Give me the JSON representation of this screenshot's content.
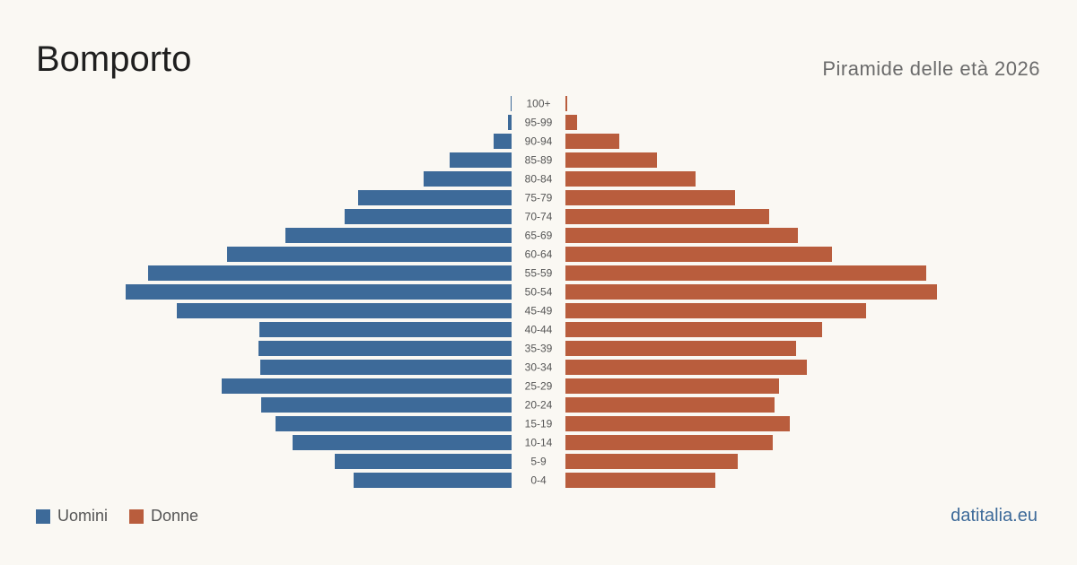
{
  "header": {
    "title": "Bomporto",
    "subtitle": "Piramide delle età 2026"
  },
  "legend": {
    "men_label": "Uomini",
    "women_label": "Donne"
  },
  "footer": {
    "brand": "datitalia.eu"
  },
  "colors": {
    "men": "#3d6a99",
    "women": "#b95d3d",
    "background": "#faf8f3"
  },
  "chart_data": {
    "type": "bar",
    "orientation": "horizontal-pyramid",
    "categories": [
      "100+",
      "95-99",
      "90-94",
      "85-89",
      "80-84",
      "75-79",
      "70-74",
      "65-69",
      "60-64",
      "55-59",
      "50-54",
      "45-49",
      "40-44",
      "35-39",
      "30-34",
      "25-29",
      "20-24",
      "15-19",
      "10-14",
      "5-9",
      "0-4"
    ],
    "series": [
      {
        "name": "Uomini",
        "values": [
          1,
          4,
          20,
          69,
          98,
          171,
          186,
          252,
          317,
          405,
          430,
          373,
          281,
          282,
          280,
          323,
          279,
          263,
          244,
          197,
          176
        ]
      },
      {
        "name": "Donne",
        "values": [
          2,
          13,
          60,
          102,
          145,
          189,
          227,
          259,
          297,
          402,
          414,
          335,
          286,
          257,
          269,
          238,
          233,
          250,
          231,
          192,
          167
        ]
      }
    ],
    "legend_position": "bottom-left",
    "grid": false
  }
}
